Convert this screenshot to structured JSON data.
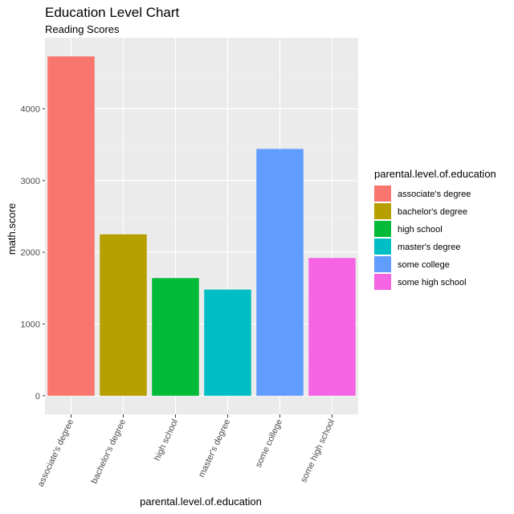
{
  "chart_data": {
    "type": "bar",
    "title": "Education Level Chart",
    "subtitle": "Reading Scores",
    "xlabel": "parental.level.of.education",
    "ylabel": "math.score",
    "categories": [
      "associate's degree",
      "bachelor's degree",
      "high school",
      "master's degree",
      "some college",
      "some high school"
    ],
    "values": [
      4730,
      2250,
      1640,
      1480,
      3440,
      1920
    ],
    "ylim": [
      -260,
      4990
    ],
    "yticks": [
      0,
      1000,
      2000,
      3000,
      4000
    ],
    "colors": [
      "#F8766D",
      "#B79F00",
      "#00BA38",
      "#00BFC4",
      "#619CFF",
      "#F564E3"
    ],
    "grid": true,
    "legend": {
      "title": "parental.level.of.education",
      "position": "right",
      "entries": [
        "associate's degree",
        "bachelor's degree",
        "high school",
        "master's degree",
        "some college",
        "some high school"
      ]
    }
  }
}
